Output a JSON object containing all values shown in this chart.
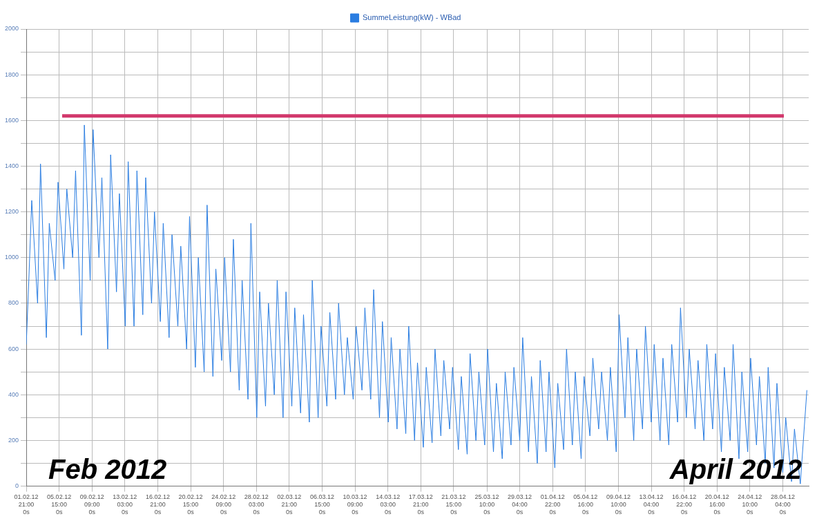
{
  "chart_data": {
    "type": "line",
    "annotations": [
      "Feb 2012",
      "April 2012"
    ],
    "xlim": [
      "2012-02-01T21:00",
      "2012-05-01T03:00"
    ],
    "xticks": [
      {
        "value": "2012-02-01T21:00",
        "label": "01.02.12\n21:00\n0s"
      },
      {
        "value": "2012-02-05T15:00",
        "label": "05.02.12\n15:00\n0s"
      },
      {
        "value": "2012-02-09T09:00",
        "label": "09.02.12\n09:00\n0s"
      },
      {
        "value": "2012-02-13T03:00",
        "label": "13.02.12\n03:00\n0s"
      },
      {
        "value": "2012-02-16T21:00",
        "label": "16.02.12\n21:00\n0s"
      },
      {
        "value": "2012-02-20T15:00",
        "label": "20.02.12\n15:00\n0s"
      },
      {
        "value": "2012-02-24T09:00",
        "label": "24.02.12\n09:00\n0s"
      },
      {
        "value": "2012-02-28T03:00",
        "label": "28.02.12\n03:00\n0s"
      },
      {
        "value": "2012-03-02T21:00",
        "label": "02.03.12\n21:00\n0s"
      },
      {
        "value": "2012-03-06T15:00",
        "label": "06.03.12\n15:00\n0s"
      },
      {
        "value": "2012-03-10T09:00",
        "label": "10.03.12\n09:00\n0s"
      },
      {
        "value": "2012-03-14T03:00",
        "label": "14.03.12\n03:00\n0s"
      },
      {
        "value": "2012-03-17T21:00",
        "label": "17.03.12\n21:00\n0s"
      },
      {
        "value": "2012-03-21T15:00",
        "label": "21.03.12\n15:00\n0s"
      },
      {
        "value": "2012-03-25T10:00",
        "label": "25.03.12\n10:00\n0s"
      },
      {
        "value": "2012-03-29T04:00",
        "label": "29.03.12\n04:00\n0s"
      },
      {
        "value": "2012-04-01T22:00",
        "label": "01.04.12\n22:00\n0s"
      },
      {
        "value": "2012-04-05T16:00",
        "label": "05.04.12\n16:00\n0s"
      },
      {
        "value": "2012-04-09T10:00",
        "label": "09.04.12\n10:00\n0s"
      },
      {
        "value": "2012-04-13T04:00",
        "label": "13.04.12\n04:00\n0s"
      },
      {
        "value": "2012-04-16T22:00",
        "label": "16.04.12\n22:00\n0s"
      },
      {
        "value": "2012-04-20T16:00",
        "label": "20.04.12\n16:00\n0s"
      },
      {
        "value": "2012-04-24T10:00",
        "label": "24.04.12\n10:00\n0s"
      },
      {
        "value": "2012-04-28T04:00",
        "label": "28.04.12\n04:00\n0s"
      }
    ],
    "ylim": [
      0,
      2000
    ],
    "yticks": [
      0,
      {
        "value": 100,
        "label": null
      },
      200,
      {
        "value": 300,
        "label": null
      },
      400,
      {
        "value": 500,
        "label": null
      },
      600,
      {
        "value": 700,
        "label": null
      },
      800,
      {
        "value": 900,
        "label": null
      },
      1000,
      {
        "value": 1100,
        "label": null
      },
      1200,
      {
        "value": 1300,
        "label": null
      },
      1400,
      {
        "value": 1500,
        "label": null
      },
      1600,
      {
        "value": 1700,
        "label": null
      },
      1800,
      {
        "value": 1900,
        "label": null
      },
      2000
    ],
    "grid": true,
    "legend": "top",
    "marker": "none",
    "line_style": "solid",
    "ref_lines": [
      {
        "axis": "y",
        "value": 1620,
        "color": "#d2386c"
      }
    ],
    "x": [
      "2012-02-01T21:00",
      "2012-02-02T04:00",
      "2012-02-02T12:00",
      "2012-02-03T04:00",
      "2012-02-03T12:00",
      "2012-02-04T04:00",
      "2012-02-04T12:00",
      "2012-02-05T04:00",
      "2012-02-05T12:00",
      "2012-02-06T04:00",
      "2012-02-06T12:00",
      "2012-02-07T04:00",
      "2012-02-07T12:00",
      "2012-02-08T04:00",
      "2012-02-08T12:00",
      "2012-02-09T04:00",
      "2012-02-09T12:00",
      "2012-02-10T04:00",
      "2012-02-10T12:00",
      "2012-02-11T04:00",
      "2012-02-11T12:00",
      "2012-02-12T04:00",
      "2012-02-12T12:00",
      "2012-02-13T04:00",
      "2012-02-13T12:00",
      "2012-02-14T04:00",
      "2012-02-14T12:00",
      "2012-02-15T04:00",
      "2012-02-15T12:00",
      "2012-02-16T04:00",
      "2012-02-16T12:00",
      "2012-02-17T04:00",
      "2012-02-17T12:00",
      "2012-02-18T04:00",
      "2012-02-18T12:00",
      "2012-02-19T04:00",
      "2012-02-19T12:00",
      "2012-02-20T04:00",
      "2012-02-20T12:00",
      "2012-02-21T04:00",
      "2012-02-21T12:00",
      "2012-02-22T04:00",
      "2012-02-22T12:00",
      "2012-02-23T04:00",
      "2012-02-23T12:00",
      "2012-02-24T04:00",
      "2012-02-24T12:00",
      "2012-02-25T04:00",
      "2012-02-25T12:00",
      "2012-02-26T04:00",
      "2012-02-26T12:00",
      "2012-02-27T04:00",
      "2012-02-27T12:00",
      "2012-02-28T04:00",
      "2012-02-28T12:00",
      "2012-02-29T04:00",
      "2012-02-29T12:00",
      "2012-03-01T04:00",
      "2012-03-01T12:00",
      "2012-03-02T04:00",
      "2012-03-02T12:00",
      "2012-03-03T04:00",
      "2012-03-03T12:00",
      "2012-03-04T04:00",
      "2012-03-04T12:00",
      "2012-03-05T04:00",
      "2012-03-05T12:00",
      "2012-03-06T04:00",
      "2012-03-06T12:00",
      "2012-03-07T04:00",
      "2012-03-07T12:00",
      "2012-03-08T04:00",
      "2012-03-08T12:00",
      "2012-03-09T04:00",
      "2012-03-09T12:00",
      "2012-03-10T04:00",
      "2012-03-10T12:00",
      "2012-03-11T04:00",
      "2012-03-11T12:00",
      "2012-03-12T04:00",
      "2012-03-12T12:00",
      "2012-03-13T04:00",
      "2012-03-13T12:00",
      "2012-03-14T04:00",
      "2012-03-14T12:00",
      "2012-03-15T04:00",
      "2012-03-15T12:00",
      "2012-03-16T04:00",
      "2012-03-16T12:00",
      "2012-03-17T04:00",
      "2012-03-17T12:00",
      "2012-03-18T04:00",
      "2012-03-18T12:00",
      "2012-03-19T04:00",
      "2012-03-19T12:00",
      "2012-03-20T04:00",
      "2012-03-20T12:00",
      "2012-03-21T04:00",
      "2012-03-21T12:00",
      "2012-03-22T04:00",
      "2012-03-22T12:00",
      "2012-03-23T04:00",
      "2012-03-23T12:00",
      "2012-03-24T04:00",
      "2012-03-24T12:00",
      "2012-03-25T04:00",
      "2012-03-25T12:00",
      "2012-03-26T04:00",
      "2012-03-26T12:00",
      "2012-03-27T04:00",
      "2012-03-27T12:00",
      "2012-03-28T04:00",
      "2012-03-28T12:00",
      "2012-03-29T04:00",
      "2012-03-29T12:00",
      "2012-03-30T04:00",
      "2012-03-30T12:00",
      "2012-03-31T04:00",
      "2012-03-31T12:00",
      "2012-04-01T04:00",
      "2012-04-01T12:00",
      "2012-04-02T04:00",
      "2012-04-02T12:00",
      "2012-04-03T04:00",
      "2012-04-03T12:00",
      "2012-04-04T04:00",
      "2012-04-04T12:00",
      "2012-04-05T04:00",
      "2012-04-05T12:00",
      "2012-04-06T04:00",
      "2012-04-06T12:00",
      "2012-04-07T04:00",
      "2012-04-07T12:00",
      "2012-04-08T04:00",
      "2012-04-08T12:00",
      "2012-04-09T04:00",
      "2012-04-09T12:00",
      "2012-04-10T04:00",
      "2012-04-10T12:00",
      "2012-04-11T04:00",
      "2012-04-11T12:00",
      "2012-04-12T04:00",
      "2012-04-12T12:00",
      "2012-04-13T04:00",
      "2012-04-13T12:00",
      "2012-04-14T04:00",
      "2012-04-14T12:00",
      "2012-04-15T04:00",
      "2012-04-15T12:00",
      "2012-04-16T04:00",
      "2012-04-16T12:00",
      "2012-04-17T04:00",
      "2012-04-17T12:00",
      "2012-04-18T04:00",
      "2012-04-18T12:00",
      "2012-04-19T04:00",
      "2012-04-19T12:00",
      "2012-04-20T04:00",
      "2012-04-20T12:00",
      "2012-04-21T04:00",
      "2012-04-21T12:00",
      "2012-04-22T04:00",
      "2012-04-22T12:00",
      "2012-04-23T04:00",
      "2012-04-23T12:00",
      "2012-04-24T04:00",
      "2012-04-24T12:00",
      "2012-04-25T04:00",
      "2012-04-25T12:00",
      "2012-04-26T04:00",
      "2012-04-26T12:00",
      "2012-04-27T04:00",
      "2012-04-27T12:00",
      "2012-04-28T04:00",
      "2012-04-28T12:00",
      "2012-04-29T04:00",
      "2012-04-29T12:00",
      "2012-04-30T04:00",
      "2012-04-30T22:00"
    ],
    "series": [
      {
        "name": "SummeLeistung(kW) - WBad",
        "color": "#2a7de1",
        "values": [
          620,
          900,
          1250,
          800,
          1410,
          650,
          1150,
          900,
          1330,
          950,
          1300,
          1000,
          1380,
          660,
          1580,
          900,
          1560,
          1000,
          1350,
          600,
          1450,
          850,
          1280,
          700,
          1420,
          700,
          1380,
          750,
          1350,
          800,
          1200,
          720,
          1150,
          650,
          1100,
          700,
          1050,
          600,
          1180,
          520,
          1000,
          500,
          1230,
          480,
          950,
          550,
          1000,
          500,
          1080,
          420,
          900,
          380,
          1150,
          300,
          850,
          350,
          800,
          400,
          900,
          300,
          850,
          350,
          780,
          320,
          750,
          280,
          900,
          300,
          700,
          350,
          760,
          380,
          800,
          400,
          650,
          380,
          700,
          420,
          780,
          380,
          860,
          300,
          720,
          280,
          650,
          250,
          600,
          230,
          700,
          200,
          540,
          170,
          520,
          190,
          600,
          220,
          550,
          250,
          520,
          160,
          480,
          140,
          580,
          200,
          500,
          180,
          600,
          150,
          450,
          120,
          500,
          180,
          520,
          200,
          650,
          150,
          480,
          100,
          550,
          150,
          500,
          80,
          450,
          160,
          600,
          180,
          500,
          120,
          480,
          220,
          560,
          250,
          500,
          200,
          520,
          150,
          750,
          300,
          650,
          200,
          600,
          250,
          700,
          280,
          620,
          200,
          560,
          180,
          620,
          280,
          780,
          300,
          600,
          250,
          550,
          200,
          620,
          250,
          580,
          150,
          520,
          200,
          620,
          120,
          500,
          150,
          560,
          180,
          480,
          100,
          520,
          80,
          450,
          60,
          300,
          20,
          250,
          10,
          420
        ]
      }
    ]
  }
}
